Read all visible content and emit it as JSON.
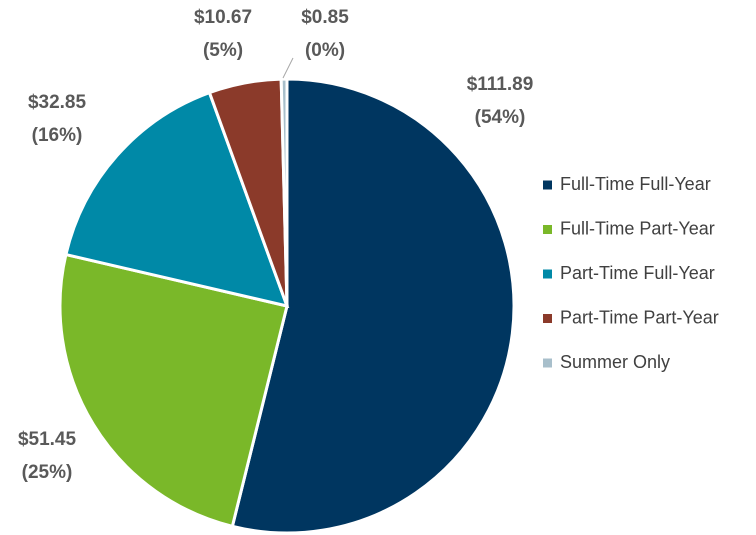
{
  "chart_data": {
    "type": "pie",
    "categories": [
      "Full-Time Full-Year",
      "Full-Time Part-Year",
      "Part-Time Full-Year",
      "Part-Time Part-Year",
      "Summer Only"
    ],
    "values": [
      111.89,
      51.45,
      32.85,
      10.67,
      0.85
    ],
    "value_labels": [
      "$111.89",
      "$51.45",
      "$32.85",
      "$10.67",
      "$0.85"
    ],
    "percent_labels": [
      "(54%)",
      "(25%)",
      "(16%)",
      "(5%)",
      "(0%)"
    ],
    "colors": [
      "#003660",
      "#7ab829",
      "#0089a7",
      "#8b3a2a",
      "#a8bfcb"
    ],
    "legend": "right"
  }
}
